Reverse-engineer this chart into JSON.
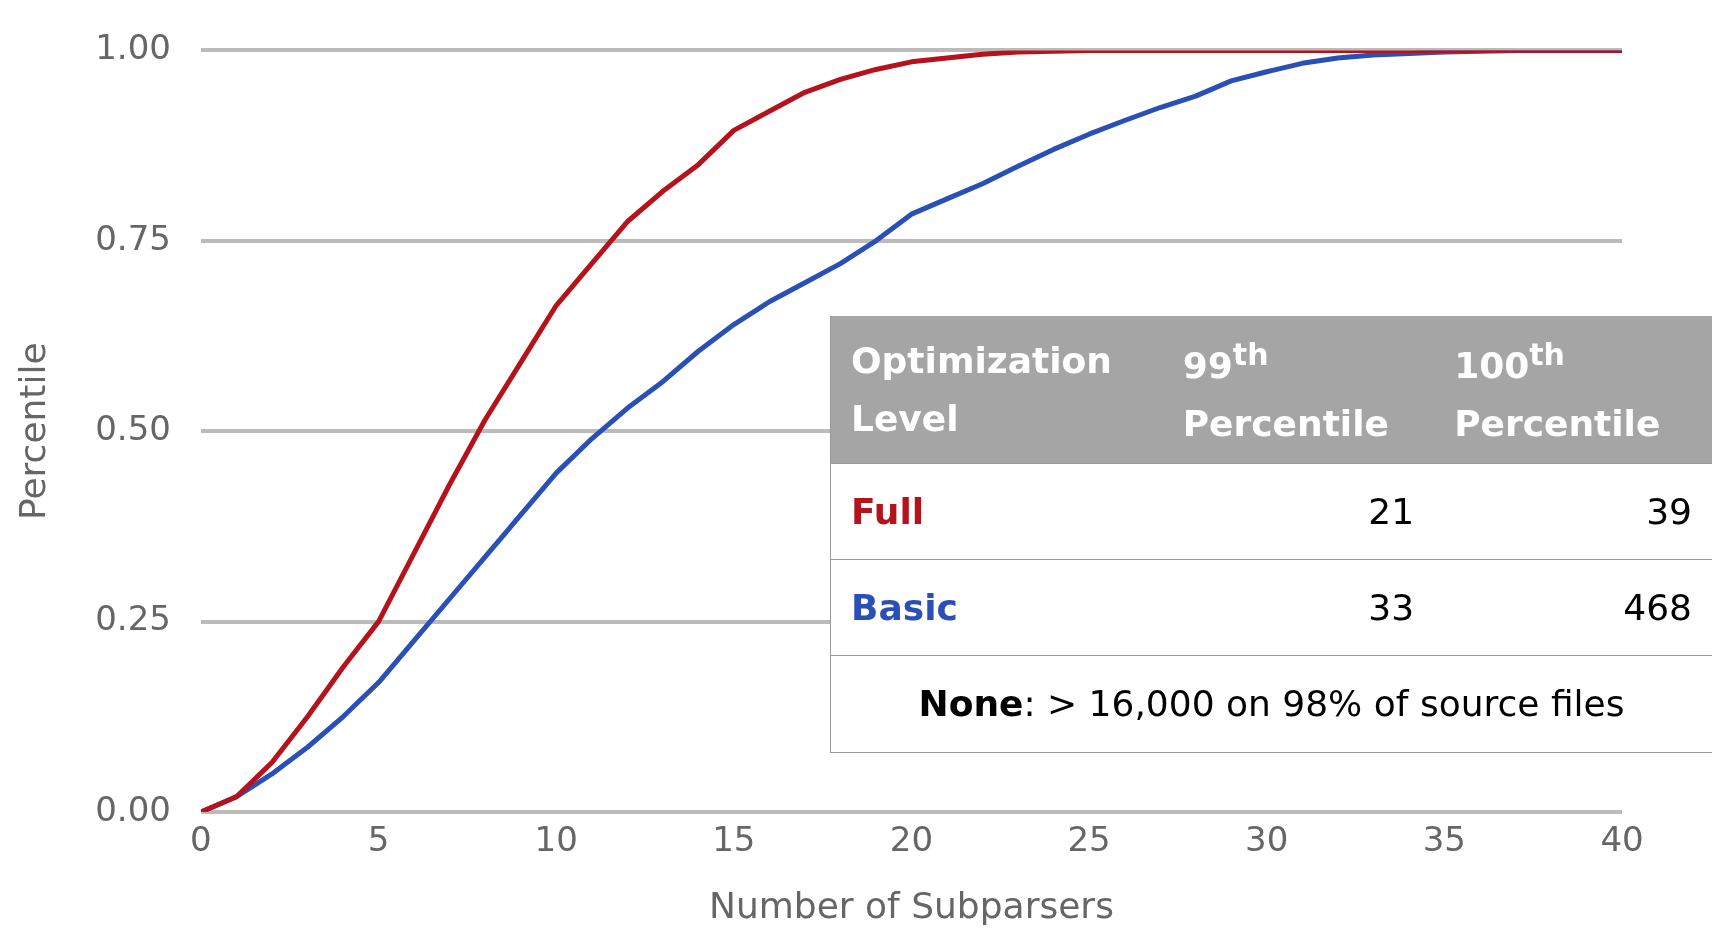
{
  "chart_data": {
    "type": "line",
    "xlabel": "Number of Subparsers",
    "ylabel": "Percentile",
    "xlim": [
      0,
      40
    ],
    "xticks": [
      0,
      5,
      10,
      15,
      20,
      25,
      30,
      35,
      40
    ],
    "ylim": [
      0,
      1
    ],
    "yticks": [
      {
        "value": 0,
        "label": "0.00"
      },
      {
        "value": 0.25,
        "label": "0.25"
      },
      {
        "value": 0.5,
        "label": "0.50"
      },
      {
        "value": 0.75,
        "label": "0.75"
      },
      {
        "value": 1,
        "label": "1.00"
      }
    ],
    "grid": "y",
    "marker": "none",
    "line_style": "solid",
    "series": [
      {
        "name": "Full",
        "color": "#b5121b",
        "x": [
          0,
          1,
          2,
          3,
          4,
          5,
          6,
          7,
          8,
          9,
          10,
          11,
          12,
          13,
          14,
          15,
          16,
          17,
          18,
          19,
          20,
          21,
          22,
          23,
          25,
          40
        ],
        "values": [
          0,
          0.02,
          0.065,
          0.125,
          0.19,
          0.25,
          0.34,
          0.43,
          0.515,
          0.59,
          0.665,
          0.72,
          0.775,
          0.815,
          0.85,
          0.895,
          0.92,
          0.945,
          0.962,
          0.975,
          0.985,
          0.99,
          0.995,
          0.998,
          1,
          1
        ]
      },
      {
        "name": "Basic",
        "color": "#2a4fb5",
        "x": [
          0,
          1,
          2,
          3,
          4,
          5,
          6,
          7,
          8,
          9,
          10,
          11,
          12,
          13,
          14,
          15,
          16,
          17,
          18,
          19,
          20,
          21,
          22,
          23,
          24,
          25,
          26,
          27,
          28,
          29,
          30,
          31,
          32,
          33,
          35,
          37,
          40
        ],
        "values": [
          0,
          0.02,
          0.05,
          0.085,
          0.125,
          0.17,
          0.225,
          0.28,
          0.335,
          0.39,
          0.445,
          0.49,
          0.53,
          0.565,
          0.605,
          0.64,
          0.67,
          0.695,
          0.72,
          0.75,
          0.785,
          0.805,
          0.825,
          0.848,
          0.87,
          0.89,
          0.908,
          0.925,
          0.94,
          0.96,
          0.972,
          0.983,
          0.99,
          0.994,
          0.998,
          1,
          1
        ]
      }
    ],
    "annotations": [
      "Optimization Level",
      "99$^{th}$ Percentile",
      "100$^{th}$ Percentile",
      "21",
      "39",
      "33",
      "468",
      "None: > 16,000 on 98% of source files"
    ]
  }
}
